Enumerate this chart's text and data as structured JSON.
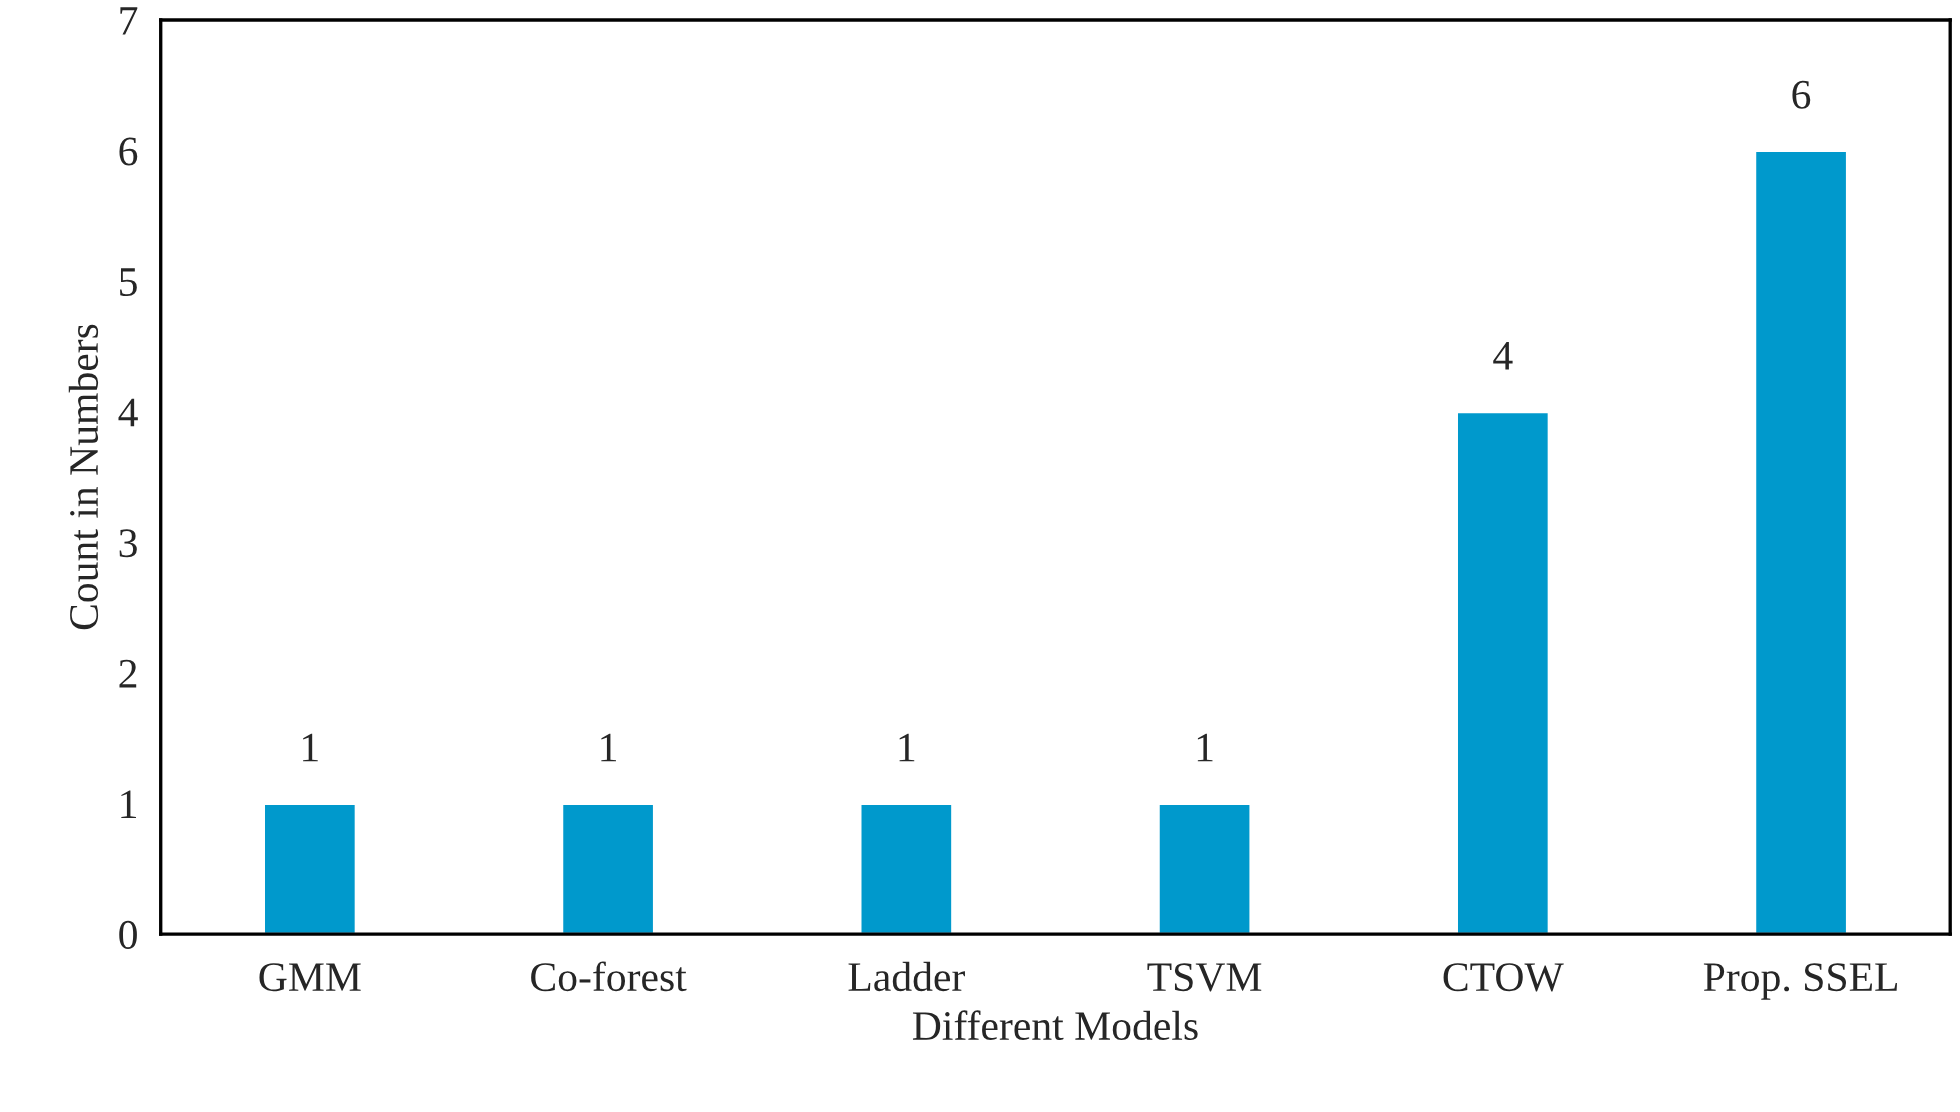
{
  "chart_data": {
    "type": "bar",
    "xlabel": "Different Models",
    "ylabel": "Count in Numbers",
    "categories": [
      "GMM",
      "Co-forest",
      "Ladder",
      "TSVM",
      "CTOW",
      "Prop. SSEL"
    ],
    "values": [
      1,
      1,
      1,
      1,
      4,
      6
    ],
    "color": "#0099cc",
    "ylim": [
      0,
      7
    ],
    "yticks": [
      0,
      1,
      2,
      3,
      4,
      5,
      6,
      7
    ],
    "grid": false,
    "data_labels": true
  }
}
